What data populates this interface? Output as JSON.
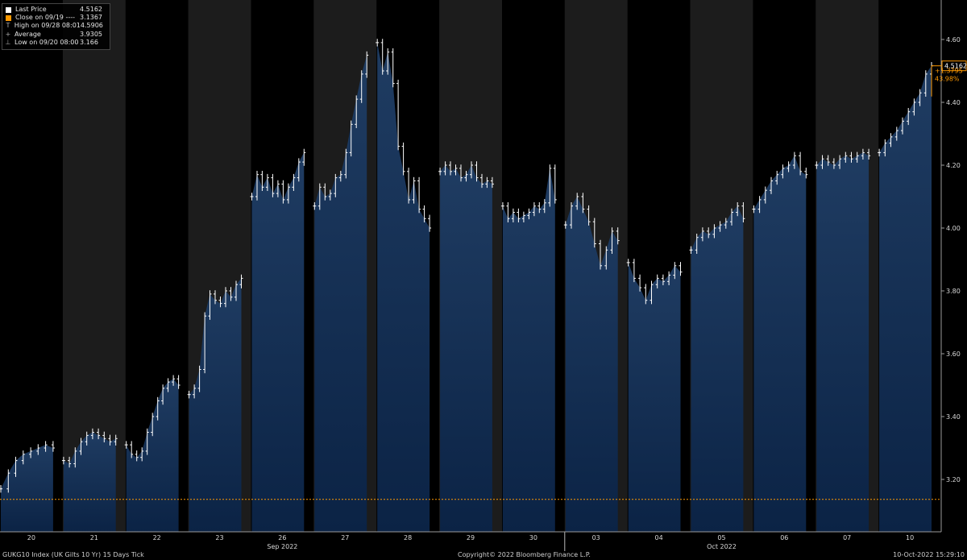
{
  "legend": {
    "items": [
      {
        "symbol": "square",
        "color": "#ffffff",
        "label": "Last Price",
        "value": "4.5162"
      },
      {
        "symbol": "square",
        "color": "#ff9900",
        "label": "Close on 09/19 ----",
        "value": "3.1367"
      },
      {
        "symbol": "T",
        "color": "#aaaaaa",
        "label": "High on 09/28 08:01",
        "value": "4.5906"
      },
      {
        "symbol": "+",
        "color": "#aaaaaa",
        "label": "Average",
        "value": "3.9305"
      },
      {
        "symbol": "⊥",
        "color": "#aaaaaa",
        "label": "Low on 09/20 08:00",
        "value": "3.166"
      }
    ]
  },
  "footer": {
    "left": "GUKG10 Index (UK Gilts 10 Yr) 15 Days  Tick",
    "center": "Copyright© 2022 Bloomberg Finance L.P.",
    "right": "10-Oct-2022 15:29:10"
  },
  "last_price_tag": "4.5162",
  "change_abs": "+1.3795",
  "change_pct": "43.98%",
  "colors": {
    "fill": "#0b2345",
    "fill_top": "#1f3c62",
    "line": "#ffffff",
    "close_line": "#ff9900",
    "shade": "#1c1c1c",
    "background": "#000000",
    "tag": "#ff9900"
  },
  "chart_data": {
    "type": "area",
    "title": "",
    "xlabel": "",
    "ylabel": "",
    "ylim": [
      3.13,
      4.66
    ],
    "y_ticks": [
      3.2,
      3.4,
      3.6,
      3.8,
      4.0,
      4.2,
      4.4,
      4.6
    ],
    "y_tick_labels": [
      "3.20",
      "3.40",
      "3.60",
      "3.80",
      "4.00",
      "4.20",
      "4.40",
      "4.60"
    ],
    "reference_line": {
      "label": "Close on 09/19",
      "value": 3.1367
    },
    "last_value": 4.5162,
    "month_labels": [
      {
        "label": "Sep 2022",
        "under_day": "26"
      },
      {
        "label": "Oct 2022",
        "under_day": "05"
      }
    ],
    "month_separator_before": "03",
    "sessions": [
      {
        "day": "20",
        "shaded": false,
        "values": [
          3.17,
          3.22,
          3.26,
          3.28,
          3.29,
          3.3,
          3.31,
          3.3
        ]
      },
      {
        "day": "21",
        "shaded": true,
        "values": [
          3.26,
          3.25,
          3.29,
          3.32,
          3.34,
          3.35,
          3.34,
          3.33,
          3.32,
          3.33
        ]
      },
      {
        "day": "22",
        "shaded": false,
        "values": [
          3.31,
          3.28,
          3.27,
          3.29,
          3.35,
          3.4,
          3.45,
          3.49,
          3.51,
          3.52,
          3.5
        ]
      },
      {
        "day": "23",
        "shaded": true,
        "values": [
          3.47,
          3.49,
          3.55,
          3.72,
          3.79,
          3.77,
          3.76,
          3.8,
          3.78,
          3.82,
          3.84
        ]
      },
      {
        "day": "26",
        "shaded": false,
        "values": [
          4.1,
          4.17,
          4.13,
          4.16,
          4.11,
          4.14,
          4.09,
          4.13,
          4.16,
          4.21,
          4.24
        ]
      },
      {
        "day": "27",
        "shaded": true,
        "values": [
          4.07,
          4.13,
          4.1,
          4.11,
          4.16,
          4.17,
          4.24,
          4.33,
          4.41,
          4.49,
          4.55
        ]
      },
      {
        "day": "28",
        "shaded": false,
        "values": [
          4.59,
          4.5,
          4.56,
          4.46,
          4.26,
          4.18,
          4.09,
          4.15,
          4.06,
          4.03,
          4.0
        ]
      },
      {
        "day": "29",
        "shaded": true,
        "values": [
          4.18,
          4.2,
          4.18,
          4.19,
          4.16,
          4.17,
          4.2,
          4.16,
          4.14,
          4.15,
          4.14
        ]
      },
      {
        "day": "30",
        "shaded": false,
        "values": [
          4.07,
          4.03,
          4.05,
          4.03,
          4.04,
          4.05,
          4.07,
          4.06,
          4.08,
          4.19,
          4.09
        ]
      },
      {
        "day": "03",
        "shaded": true,
        "values": [
          4.01,
          4.07,
          4.1,
          4.06,
          4.02,
          3.95,
          3.88,
          3.93,
          3.99,
          3.96
        ]
      },
      {
        "day": "04",
        "shaded": false,
        "values": [
          3.89,
          3.84,
          3.81,
          3.77,
          3.82,
          3.84,
          3.83,
          3.85,
          3.88,
          3.86
        ]
      },
      {
        "day": "05",
        "shaded": true,
        "values": [
          3.93,
          3.97,
          3.99,
          3.98,
          4.0,
          4.01,
          4.02,
          4.05,
          4.07,
          4.03
        ]
      },
      {
        "day": "06",
        "shaded": false,
        "values": [
          4.06,
          4.09,
          4.12,
          4.15,
          4.17,
          4.19,
          4.2,
          4.23,
          4.18,
          4.17
        ]
      },
      {
        "day": "07",
        "shaded": true,
        "values": [
          4.2,
          4.22,
          4.21,
          4.2,
          4.22,
          4.23,
          4.22,
          4.23,
          4.24,
          4.23
        ]
      },
      {
        "day": "10",
        "shaded": false,
        "values": [
          4.24,
          4.27,
          4.29,
          4.31,
          4.34,
          4.37,
          4.4,
          4.43,
          4.49,
          4.5162
        ]
      }
    ]
  }
}
